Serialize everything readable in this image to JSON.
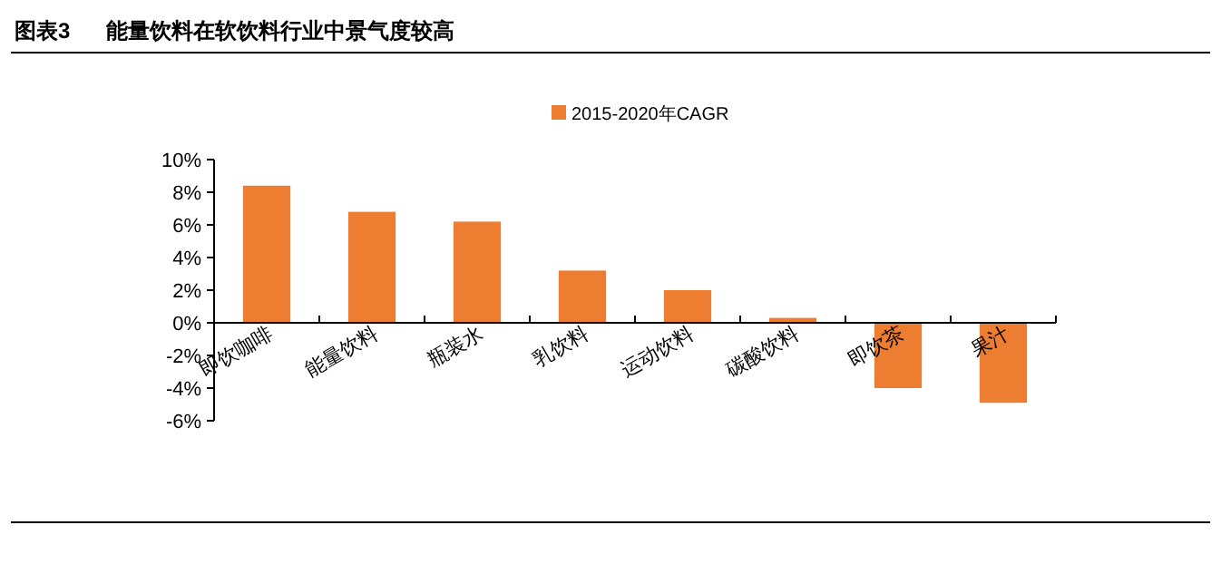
{
  "chart_data": {
    "type": "bar",
    "title": "图表3      能量饮料在软饮料行业中景气度较高",
    "categories": [
      "即饮咖啡",
      "能量饮料",
      "瓶装水",
      "乳饮料",
      "运动饮料",
      "碳酸饮料",
      "即饮茶",
      "果汁"
    ],
    "series": [
      {
        "name": "2015-2020年CAGR",
        "color": "#ed7d31",
        "values": [
          8.4,
          6.8,
          6.2,
          3.2,
          2.0,
          0.3,
          -4.0,
          -4.9
        ]
      }
    ],
    "ylim": [
      -6,
      10
    ],
    "yticks": [
      {
        "value": -6,
        "label": "-6%"
      },
      {
        "value": -4,
        "label": "-4%"
      },
      {
        "value": -2,
        "label": "-2%"
      },
      {
        "value": 0,
        "label": "0%"
      },
      {
        "value": 2,
        "label": "2%"
      },
      {
        "value": 4,
        "label": "4%"
      },
      {
        "value": 6,
        "label": "6%"
      },
      {
        "value": 8,
        "label": "8%"
      },
      {
        "value": 10,
        "label": "10%"
      }
    ],
    "legend": "top"
  }
}
